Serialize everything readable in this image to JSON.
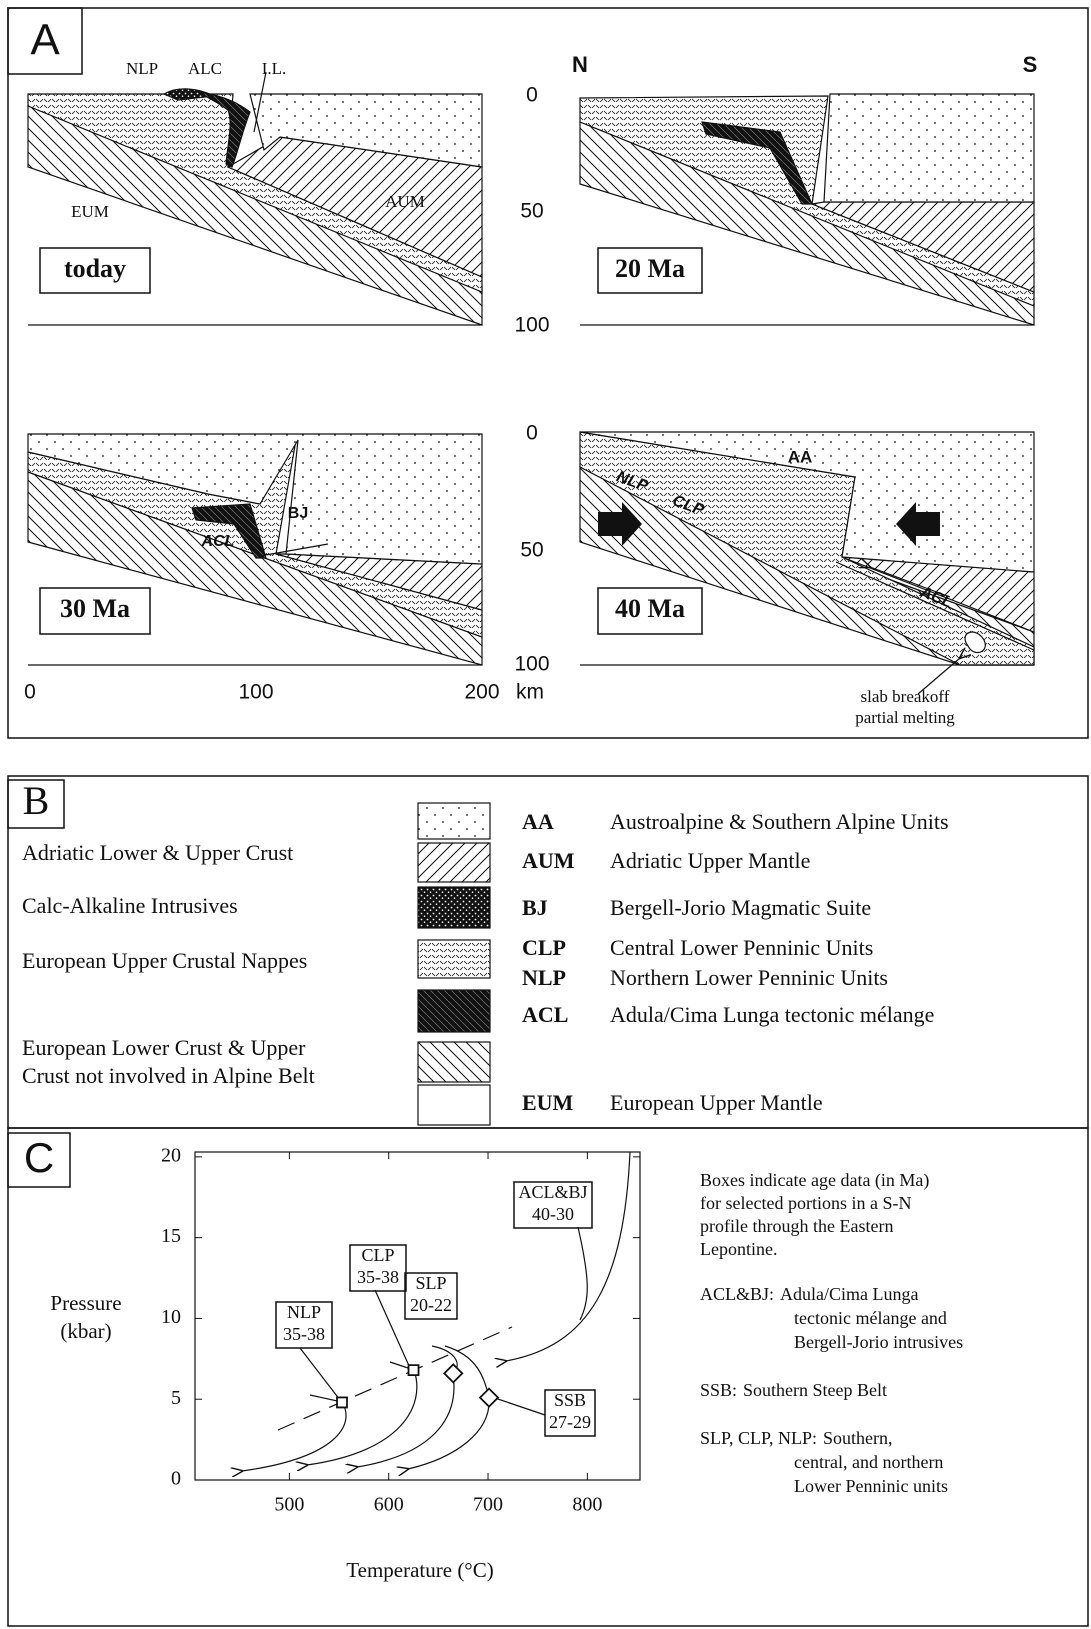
{
  "panel_a": {
    "label": "A",
    "north": "N",
    "south": "S",
    "depth_ticks_upper": [
      0,
      50,
      100
    ],
    "depth_ticks_lower": [
      0,
      50,
      100
    ],
    "distance_ticks": [
      0,
      100,
      200
    ],
    "distance_unit": "km",
    "sections": [
      {
        "label": "today",
        "annotations": [
          "NLP",
          "ALC",
          "I.L.",
          "EUM",
          "AUM"
        ]
      },
      {
        "label": "20 Ma"
      },
      {
        "label": "30 Ma",
        "annotations": [
          "ACL",
          "BJ"
        ]
      },
      {
        "label": "40 Ma",
        "annotations": [
          "AA",
          "NLP",
          "CLP",
          "ACL"
        ]
      }
    ],
    "note": [
      "slab breakoff",
      "partial melting"
    ]
  },
  "panel_b": {
    "label": "B",
    "units": [
      [
        "Adriatic Lower & Upper Crust"
      ],
      [
        "Calc-Alkaline Intrusives"
      ],
      [
        "European Upper Crustal Nappes"
      ],
      [
        "European Lower Crust & Upper",
        "Crust not involved in Alpine Belt"
      ]
    ],
    "legend": [
      {
        "abbr": "AA",
        "name": "Austroalpine & Southern Alpine Units"
      },
      {
        "abbr": "AUM",
        "name": "Adriatic Upper Mantle"
      },
      {
        "abbr": "BJ",
        "name": "Bergell-Jorio Magmatic Suite"
      },
      {
        "abbr": "CLP",
        "name": "Central Lower Penninic Units"
      },
      {
        "abbr": "NLP",
        "name": "Northern Lower Penninic Units"
      },
      {
        "abbr": "ACL",
        "name": "Adula/Cima Lunga tectonic mélange"
      },
      {
        "abbr": "EUM",
        "name": "European Upper Mantle"
      }
    ]
  },
  "panel_c": {
    "label": "C",
    "y_label": [
      "Pressure",
      "(kbar)"
    ],
    "x_label": "Temperature (°C)",
    "xlim": [
      405,
      853
    ],
    "ylim": [
      0,
      20.3
    ],
    "xticks": [
      500,
      600,
      700,
      800
    ],
    "yticks": [
      0,
      5,
      10,
      15,
      20
    ],
    "boxes": [
      {
        "lines": [
          "ACL&BJ",
          "40-30"
        ]
      },
      {
        "lines": [
          "CLP",
          "35-38"
        ]
      },
      {
        "lines": [
          "SLP",
          "20-22"
        ]
      },
      {
        "lines": [
          "NLP",
          "35-38"
        ]
      },
      {
        "lines": [
          "SSB",
          "27-29"
        ]
      }
    ],
    "points": [
      {
        "temperature": 553,
        "pressure": 4.8,
        "shape": "square"
      },
      {
        "temperature": 625,
        "pressure": 6.8,
        "shape": "square"
      },
      {
        "temperature": 665,
        "pressure": 6.6,
        "shape": "diamond"
      },
      {
        "temperature": 701,
        "pressure": 5.1,
        "shape": "diamond"
      }
    ],
    "description": [
      "Boxes indicate age data (in Ma)",
      "for selected portions in a S-N",
      "profile through the Eastern",
      "Lepontine."
    ],
    "abbreviations": [
      {
        "term": "ACL&BJ:",
        "definition": [
          "Adula/Cima Lunga",
          "tectonic mélange and",
          "Bergell-Jorio intrusives"
        ]
      },
      {
        "term": "SSB:",
        "definition": [
          "Southern Steep Belt"
        ]
      },
      {
        "term": "SLP, CLP, NLP:",
        "definition": [
          "Southern,",
          "central, and northern",
          "Lower Penninic units"
        ]
      }
    ]
  }
}
